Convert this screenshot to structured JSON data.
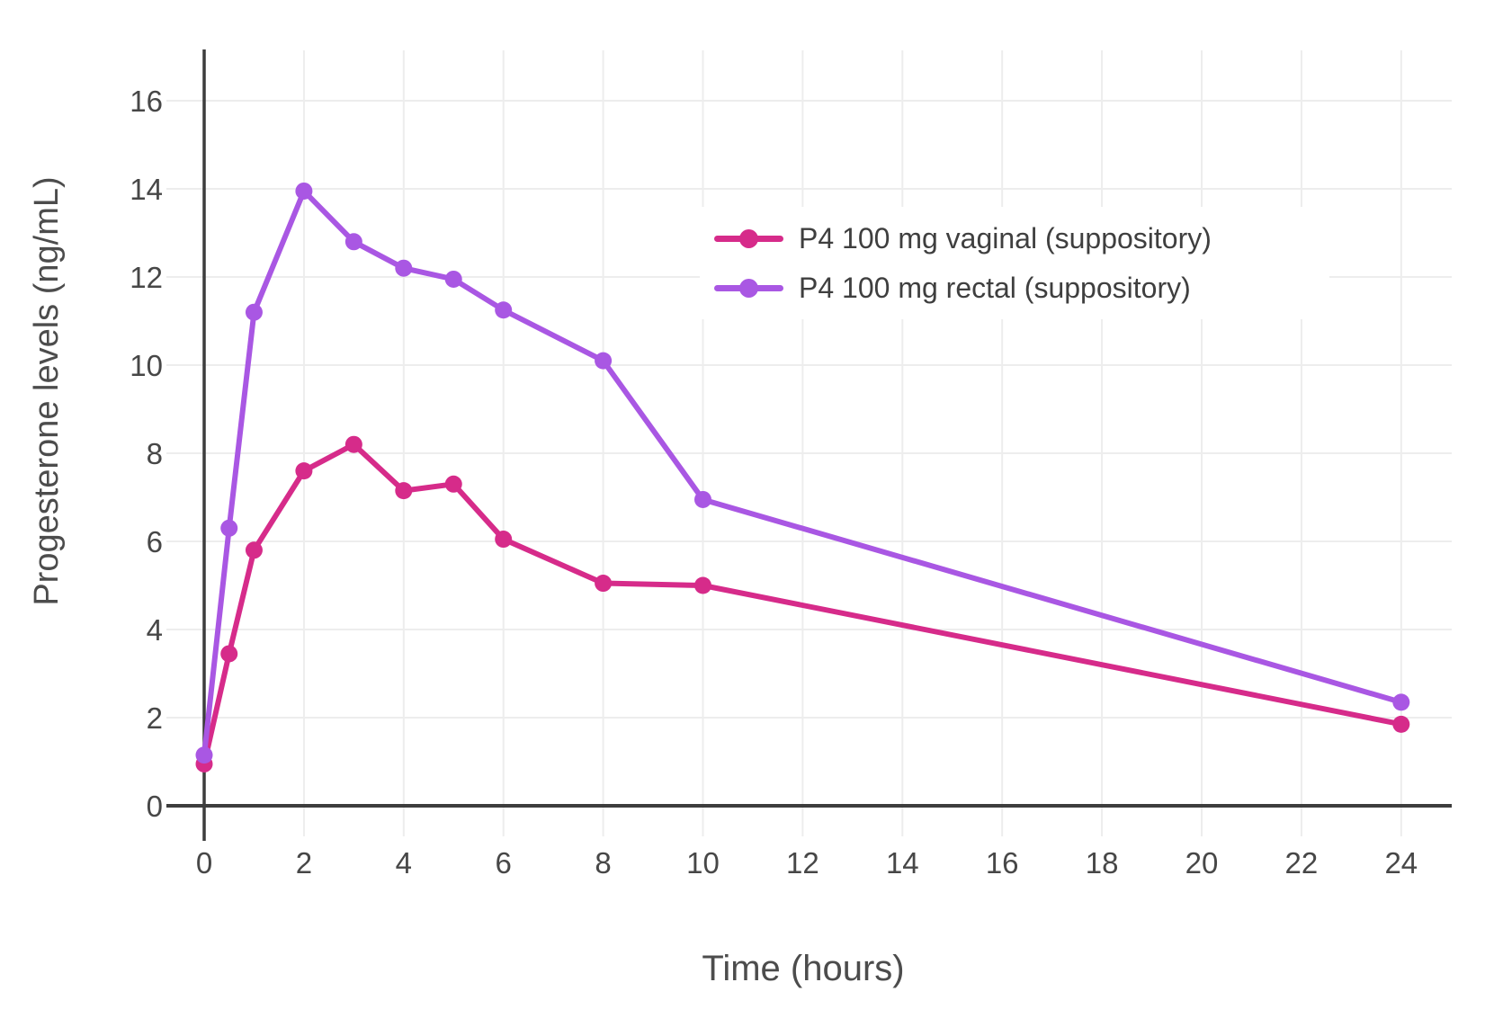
{
  "chart_data": {
    "type": "line",
    "title": "",
    "xlabel": "Time (hours)",
    "ylabel": "Progesterone levels (ng/mL)",
    "x_ticks": [
      0,
      2,
      4,
      6,
      8,
      10,
      12,
      14,
      16,
      18,
      20,
      22,
      24
    ],
    "y_ticks": [
      0,
      2,
      4,
      6,
      8,
      10,
      12,
      14,
      16
    ],
    "xlim": [
      0,
      25
    ],
    "ylim": [
      0,
      17.2
    ],
    "grid": true,
    "legend_position": "top-right-inside",
    "colors": {
      "grid": "#ededed",
      "axis": "#3d3d3d",
      "tick_text": "#474747",
      "title_text": "#4c4c4c",
      "background": "#ffffff"
    },
    "series": [
      {
        "name": "P4 100 mg vaginal (suppository)",
        "color": "#d62b8a",
        "x": [
          0,
          0.5,
          1,
          2,
          3,
          4,
          5,
          6,
          8,
          10,
          24
        ],
        "y": [
          0.95,
          3.45,
          5.8,
          7.6,
          8.2,
          7.15,
          7.3,
          6.05,
          5.05,
          5.0,
          1.85
        ]
      },
      {
        "name": "P4 100 mg rectal (suppository)",
        "color": "#a957e3",
        "x": [
          0,
          0.5,
          1,
          2,
          3,
          4,
          5,
          6,
          8,
          10,
          24
        ],
        "y": [
          1.15,
          6.3,
          11.2,
          13.95,
          12.8,
          12.2,
          11.95,
          11.25,
          10.1,
          6.95,
          2.35
        ]
      }
    ]
  }
}
